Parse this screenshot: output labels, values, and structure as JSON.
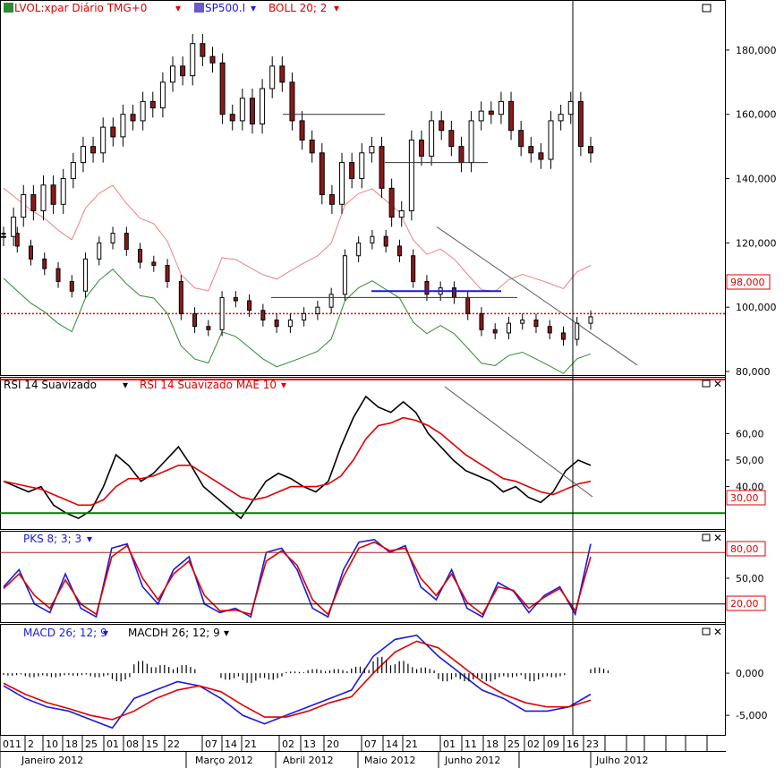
{
  "panels": {
    "price": {
      "header": [
        {
          "icon": "symbol-icon",
          "text": "LVOL:xpar Diário TMG+0",
          "color": "#e00000"
        },
        {
          "icon": "index-icon",
          "text": "SP500.I",
          "color": "#1a1ae0"
        },
        {
          "icon": "",
          "text": "BOLL 20; 2",
          "color": "#e00000"
        }
      ],
      "y_ticks": [
        "180,000",
        "160,000",
        "140,000",
        "120,000",
        "100,000",
        "80,000"
      ],
      "last_price_label": "98,000"
    },
    "rsi": {
      "header": [
        {
          "text": "RSI 14 Suavizado",
          "color": "#000000"
        },
        {
          "text": "RSI 14 Suavizado MAE 10",
          "color": "#e00000"
        }
      ],
      "y_ticks": [
        "60,00",
        "50,00",
        "40,00"
      ],
      "level_label": "30,00"
    },
    "pks": {
      "header": [
        {
          "text": "PKS 8; 3; 3",
          "color": "#1a1ae0"
        }
      ],
      "y_ticks": [
        "50,00"
      ],
      "upper_label": "80,00",
      "lower_label": "20,00"
    },
    "macd": {
      "header": [
        {
          "text": "MACD 26; 12; 9",
          "color": "#1a1ae0"
        },
        {
          "text": "MACDH 26; 12; 9",
          "color": "#000000"
        }
      ],
      "y_ticks": [
        "0,000",
        "-5,000"
      ]
    }
  },
  "x_axis": {
    "days": [
      "011",
      "2",
      "10",
      "18",
      "25",
      "01",
      "08",
      "15",
      "22",
      "07",
      "14",
      "21",
      "02",
      "13",
      "20",
      "07",
      "14",
      "21",
      "01",
      "11",
      "18",
      "25",
      "02",
      "09",
      "16",
      "23"
    ],
    "months": [
      "Janeiro 2012",
      "Março 2012",
      "Abril 2012",
      "Maio 2012",
      "Junho 2012",
      "Julho 2012"
    ]
  },
  "colors": {
    "up_candle": "#ffffff",
    "down_candle": "#8b1a1a",
    "boll_upper": "#f08080",
    "boll_lower": "#2e8b2e",
    "rsi_line": "#000000",
    "rsi_ma": "#e00000",
    "rsi_level": "#008000",
    "pks_k": "#1a1ae0",
    "pks_d": "#e00000",
    "macd": "#1a1ae0",
    "macd_signal": "#e00000",
    "price_dotted": "#e00000"
  },
  "chart_data": [
    {
      "type": "candlestick",
      "title": "LVOL:xpar Diário TMG+0",
      "ylim": [
        80,
        190
      ],
      "close_series": [
        122,
        128,
        135,
        130,
        138,
        132,
        140,
        145,
        150,
        148,
        156,
        153,
        160,
        158,
        164,
        162,
        170,
        175,
        172,
        182,
        178,
        176,
        160,
        158,
        165,
        157,
        168,
        175,
        170,
        158,
        152,
        148,
        135,
        132,
        145,
        140,
        148,
        150,
        137,
        128,
        130,
        152,
        147,
        158,
        155,
        150,
        145,
        158,
        161,
        160,
        164,
        155,
        150,
        148,
        146,
        158,
        160,
        164,
        150,
        148
      ],
      "overlay_index": {
        "name": "SP500.I",
        "levels": [
          123,
          119,
          115,
          112,
          108,
          105,
          115,
          120,
          123,
          118,
          114,
          113,
          108,
          98,
          94,
          93,
          103,
          102,
          99,
          96,
          94,
          96,
          98,
          100,
          104,
          116,
          120,
          122,
          119,
          116,
          108,
          104,
          106,
          103,
          98,
          93,
          92,
          95,
          96,
          94,
          92,
          90,
          95,
          97
        ]
      },
      "last_price": 98
    },
    {
      "type": "line",
      "title": "RSI 14 Suavizado",
      "ylim": [
        25,
        75
      ],
      "series": [
        {
          "name": "RSI 14 Suavizado",
          "values": [
            42,
            40,
            38,
            40,
            33,
            30,
            28,
            31,
            40,
            52,
            48,
            42,
            45,
            50,
            55,
            48,
            40,
            36,
            32,
            28,
            35,
            42,
            45,
            43,
            40,
            38,
            42,
            55,
            66,
            74,
            70,
            68,
            72,
            68,
            60,
            55,
            50,
            46,
            44,
            42,
            38,
            40,
            36,
            34,
            38,
            46,
            50,
            48
          ]
        },
        {
          "name": "RSI 14 Suavizado MAE 10",
          "values": [
            42,
            41,
            40,
            39,
            37,
            35,
            33,
            33,
            35,
            40,
            43,
            43,
            44,
            46,
            48,
            48,
            45,
            42,
            39,
            36,
            35,
            36,
            38,
            40,
            40,
            40,
            41,
            44,
            50,
            58,
            63,
            64,
            66,
            65,
            63,
            60,
            56,
            52,
            49,
            46,
            43,
            42,
            40,
            38,
            37,
            39,
            41,
            42
          ]
        }
      ],
      "level": 30
    },
    {
      "type": "line",
      "title": "PKS 8; 3; 3",
      "ylim": [
        0,
        100
      ],
      "series": [
        {
          "name": "PKS 8; 3; 3 %K",
          "values": [
            40,
            60,
            20,
            10,
            55,
            15,
            5,
            85,
            90,
            40,
            20,
            60,
            75,
            20,
            10,
            15,
            5,
            80,
            85,
            60,
            15,
            5,
            60,
            92,
            95,
            80,
            88,
            40,
            25,
            60,
            15,
            5,
            45,
            35,
            10,
            30,
            40,
            8,
            90
          ]
        },
        {
          "name": "PKS 8; 3; 3 %D",
          "values": [
            38,
            55,
            30,
            15,
            48,
            20,
            8,
            75,
            88,
            50,
            25,
            55,
            70,
            30,
            12,
            13,
            8,
            70,
            82,
            65,
            25,
            8,
            52,
            85,
            92,
            82,
            85,
            50,
            30,
            55,
            22,
            8,
            40,
            36,
            15,
            28,
            38,
            12,
            75
          ]
        }
      ],
      "levels": [
        80,
        20
      ]
    },
    {
      "type": "line",
      "title": "MACD 26; 12; 9",
      "ylim": [
        -7,
        5
      ],
      "series": [
        {
          "name": "MACD 26; 12; 9",
          "values": [
            -1.5,
            -3,
            -4,
            -4.5,
            -5.5,
            -6.5,
            -3,
            -2,
            -1,
            -1.5,
            -3,
            -5,
            -6,
            -5,
            -4,
            -3,
            -2,
            2,
            4,
            4.5,
            2,
            0,
            -2,
            -3,
            -4.5,
            -4.5,
            -4,
            -2.5
          ]
        },
        {
          "name": "MACD signal",
          "values": [
            -1.2,
            -2.5,
            -3.5,
            -4.2,
            -5,
            -5.5,
            -4.5,
            -3,
            -2,
            -1.5,
            -2.2,
            -3.8,
            -5.2,
            -5.2,
            -4.5,
            -3.5,
            -2.8,
            0,
            2.5,
            3.8,
            3,
            1,
            -1,
            -2.5,
            -3.5,
            -4,
            -4,
            -3.2
          ]
        }
      ],
      "histogram": [
        -0.3,
        -0.5,
        -0.5,
        -0.3,
        -0.5,
        -1,
        1.5,
        1,
        1,
        0,
        -0.8,
        -1.2,
        -0.8,
        0.2,
        0.5,
        0.5,
        0.8,
        2,
        1.5,
        0.7,
        -1,
        -1,
        -1,
        -0.5,
        -1,
        -0.5,
        0,
        0.7
      ]
    }
  ]
}
